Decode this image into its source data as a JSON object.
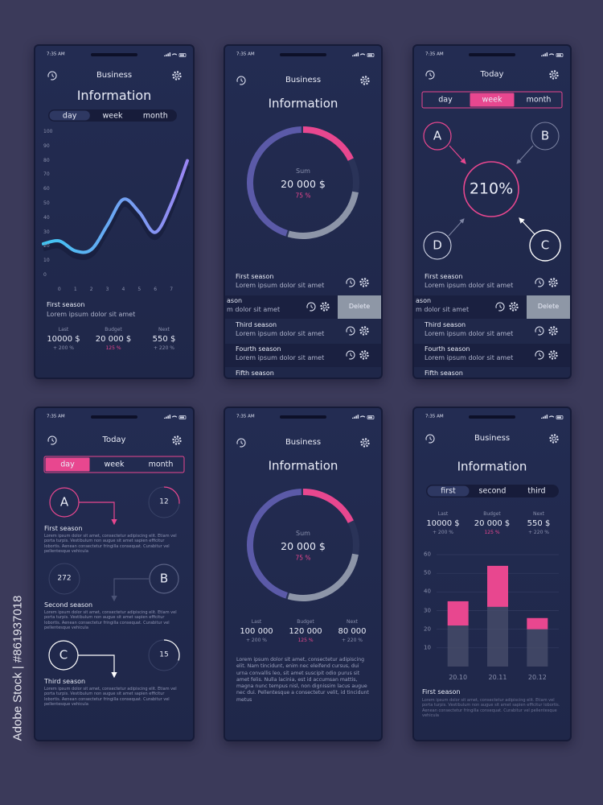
{
  "watermark": "Adobe Stock | #861937018",
  "screens": [
    {
      "status_time": "7:35 AM",
      "header": "Business",
      "title": "Information",
      "tabs": [
        "day",
        "week",
        "month"
      ],
      "chart": {
        "type": "line",
        "x": [
          -1,
          0,
          1,
          2,
          3,
          4,
          5,
          6,
          7,
          8
        ],
        "values": [
          22,
          24,
          17,
          18,
          35,
          53,
          44,
          30,
          50,
          80
        ],
        "xlim": [
          -1.4,
          8.2
        ],
        "xticks": [
          0,
          1,
          2,
          3,
          4,
          5,
          6,
          7
        ],
        "ylim": [
          0,
          100
        ],
        "yticks": [
          0,
          10,
          20,
          30,
          40,
          50,
          60,
          70,
          80,
          90,
          100
        ],
        "color": [
          "#3fc6f3",
          "#9a85f3"
        ]
      },
      "item": {
        "title": "First season",
        "text": "Lorem ipsum dolor sit amet"
      },
      "stats": [
        {
          "label": "Last",
          "value": "10000 $",
          "change": "+ 200 %"
        },
        {
          "label": "Budget",
          "value": "20 000 $",
          "change": "125 %"
        },
        {
          "label": "Next",
          "value": "550 $",
          "change": "+ 220 %"
        }
      ]
    },
    {
      "status_time": "7:35 AM",
      "header": "Business",
      "title": "Information",
      "donut": {
        "label": "Sum",
        "value": "20 000 $",
        "percent": "75 %"
      },
      "list": [
        {
          "title": "First season",
          "text": "Lorem ipsum dolor sit amet"
        },
        {
          "title": "ason",
          "text": "m dolor sit amet",
          "action": "Delete"
        },
        {
          "title": "Third season",
          "text": "Lorem ipsum dolor sit amet"
        },
        {
          "title": "Fourth season",
          "text": "Lorem ipsum dolor sit amet"
        },
        {
          "title": "Fifth season"
        }
      ]
    },
    {
      "status_time": "7:35 AM",
      "header": "Today",
      "tabs": [
        "day",
        "week",
        "month"
      ],
      "nodes": {
        "a": "A",
        "b": "B",
        "c": "C",
        "d": "D",
        "center": "210%"
      },
      "list": [
        {
          "title": "First season",
          "text": "Lorem ipsum dolor sit amet"
        },
        {
          "title": "ason",
          "text": "m dolor sit amet",
          "action": "Delete"
        },
        {
          "title": "Third season",
          "text": "Lorem ipsum dolor sit amet"
        },
        {
          "title": "Fourth season",
          "text": "Lorem ipsum dolor sit amet"
        },
        {
          "title": "Fifth season"
        }
      ]
    },
    {
      "status_time": "7:35 AM",
      "header": "Today",
      "tabs": [
        "day",
        "week",
        "month"
      ],
      "rows": [
        {
          "letter": "A",
          "number": "12",
          "title": "First season",
          "text": "Lorem ipsum dolor sit amet, consectetur adipiscing elit. Etiam vel porta turpis. Vestibulum non augue sit amet sapien efficitur lobortis. Aenean consectetur fringilla consequat. Curabitur vel pellentesque vehicula"
        },
        {
          "letter": "B",
          "number": "272",
          "title": "Second season",
          "text": "Lorem ipsum dolor sit amet, consectetur adipiscing elit. Etiam vel porta turpis. Vestibulum non augue sit amet sapien efficitur lobortis. Aenean consectetur fringilla consequat. Curabitur vel pellentesque vehicula"
        },
        {
          "letter": "C",
          "number": "15",
          "title": "Third season",
          "text": "Lorem ipsum dolor sit amet, consectetur adipiscing elit. Etiam vel porta turpis. Vestibulum non augue sit amet sapien efficitur lobortis. Aenean consectetur fringilla consequat. Curabitur vel pellentesque vehicula"
        }
      ]
    },
    {
      "status_time": "7:35 AM",
      "header": "Business",
      "title": "Information",
      "donut": {
        "label": "Sum",
        "value": "20 000 $",
        "percent": "75 %"
      },
      "stats": [
        {
          "label": "Last",
          "value": "100 000",
          "change": "+ 200 %"
        },
        {
          "label": "Budget",
          "value": "120 000",
          "change": "125 %"
        },
        {
          "label": "Next",
          "value": "80 000",
          "change": "+ 220 %"
        }
      ],
      "text": "Lorem ipsum dolor sit amet, consectetur adipiscing elit. Nam tincidunt, enim nec eleifend cursus, dui urna convallis leo, sit amet suscipit odio purus sit amet felis. Nulla lacinia, est id accumsan mattis, magna nunc tempus nisl, non dignissim lacus augue nec dui. Pellentesque a consectetur velit, id tincidunt metus"
    },
    {
      "status_time": "7:35 AM",
      "header": "Business",
      "title": "Information",
      "tabs": [
        "first",
        "second",
        "third"
      ],
      "stats": [
        {
          "label": "Last",
          "value": "10000 $",
          "change": "+ 200 %"
        },
        {
          "label": "Budget",
          "value": "20 000 $",
          "change": "125 %"
        },
        {
          "label": "Next",
          "value": "550 $",
          "change": "+ 220 %"
        }
      ],
      "chart": {
        "type": "bar",
        "categories": [
          "20.10",
          "20.11",
          "20.12"
        ],
        "series": [
          {
            "color": "#4a4f6c",
            "values": [
              22,
              32,
              20
            ]
          },
          {
            "color": "#e8478f",
            "values": [
              13,
              22,
              6
            ]
          }
        ],
        "ylim": [
          0,
          60
        ],
        "yticks": [
          10,
          20,
          30,
          40,
          50,
          60
        ],
        "grid": true
      },
      "item": {
        "title": "First season",
        "text": "Lorem ipsum dolor sit amet, consectetur adipiscing elit. Etiam vel porta turpis. Vestibulum non augue sit amet sapien efficitur lobortis. Aenean consectetur fringilla consequat. Curabitur vel pellentesque vehicula"
      }
    }
  ]
}
